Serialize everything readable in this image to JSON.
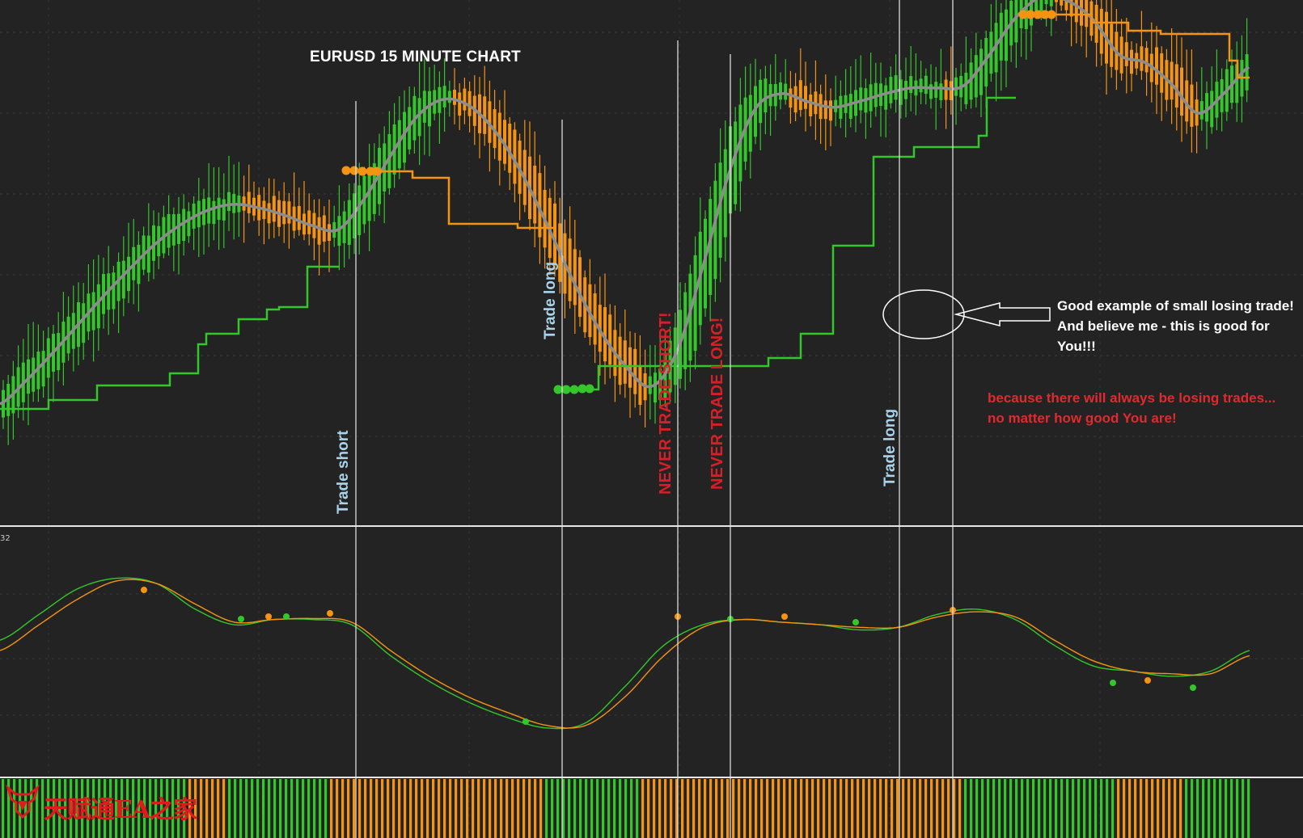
{
  "chart_data": [
    {
      "type": "candlestick",
      "title": "EURUSD 15 MINUTE CHART",
      "series": [
        {
          "name": "",
          "values": [
            1.254,
            1.2552,
            1.2566,
            1.2581,
            1.2596,
            1.261,
            1.2623,
            1.2633,
            1.264,
            1.2643,
            1.2641,
            1.2637,
            1.2632,
            1.263,
            1.2646,
            1.2668,
            1.2688,
            1.2697,
            1.2694,
            1.2681,
            1.266,
            1.2633,
            1.2604,
            1.2579,
            1.256,
            1.2549,
            1.2567,
            1.2611,
            1.2659,
            1.2692,
            1.27,
            1.2696,
            1.2693,
            1.2696,
            1.27,
            1.2703,
            1.2703,
            1.2704,
            1.272,
            1.2739,
            1.275,
            1.2748,
            1.2738,
            1.272,
            1.2716,
            1.2705,
            1.269,
            1.27,
            1.2714
          ]
        }
      ],
      "colors": {
        "up": "#33c72b",
        "down": "#f59312",
        "mid_line": "#8a8a8a",
        "resistance": "#f59312",
        "support": "#33c72b"
      }
    },
    {
      "type": "line",
      "series": [
        {
          "values": [
            -0.2,
            0.3,
            0.8,
            1.0,
            0.9,
            0.4,
            0.1,
            0.2,
            0.2,
            0.1,
            -0.5,
            -1.0,
            -1.4,
            -1.7,
            -1.9,
            -1.8,
            -1.1,
            -0.3,
            0.1,
            0.2,
            0.15,
            0.1,
            0.0,
            0.05,
            0.3,
            0.4,
            0.2,
            -0.3,
            -0.7,
            -0.8,
            -0.9,
            -0.8,
            -0.4
          ]
        },
        {
          "values": [
            -0.4,
            0.1,
            0.6,
            0.95,
            0.9,
            0.5,
            0.15,
            0.2,
            0.22,
            0.15,
            -0.4,
            -0.9,
            -1.3,
            -1.6,
            -1.85,
            -1.85,
            -1.3,
            -0.5,
            0.05,
            0.2,
            0.15,
            0.1,
            0.05,
            0.05,
            0.25,
            0.35,
            0.25,
            -0.2,
            -0.6,
            -0.8,
            -0.85,
            -0.85,
            -0.5
          ]
        }
      ],
      "colors": [
        "#33c72b",
        "#f59312"
      ]
    }
  ],
  "annotations": {
    "trade_short": "Trade short",
    "trade_long_1": "Trade long",
    "never_short": "NEVER TRADE SHORT!",
    "never_long": "NEVER TRADE LONG!",
    "trade_long_2": "Trade long",
    "note_white": "Good example of small losing trade! And believe me -  this is good for You!!!",
    "note_red": "because there will always be losing trades... no matter how good You are!"
  },
  "indicator_label": "32",
  "logo_text": "天赋通EA之家",
  "colors": {
    "background": "#232323",
    "up": "#33c72b",
    "down": "#f59312",
    "guide": "#e8e8e8"
  }
}
